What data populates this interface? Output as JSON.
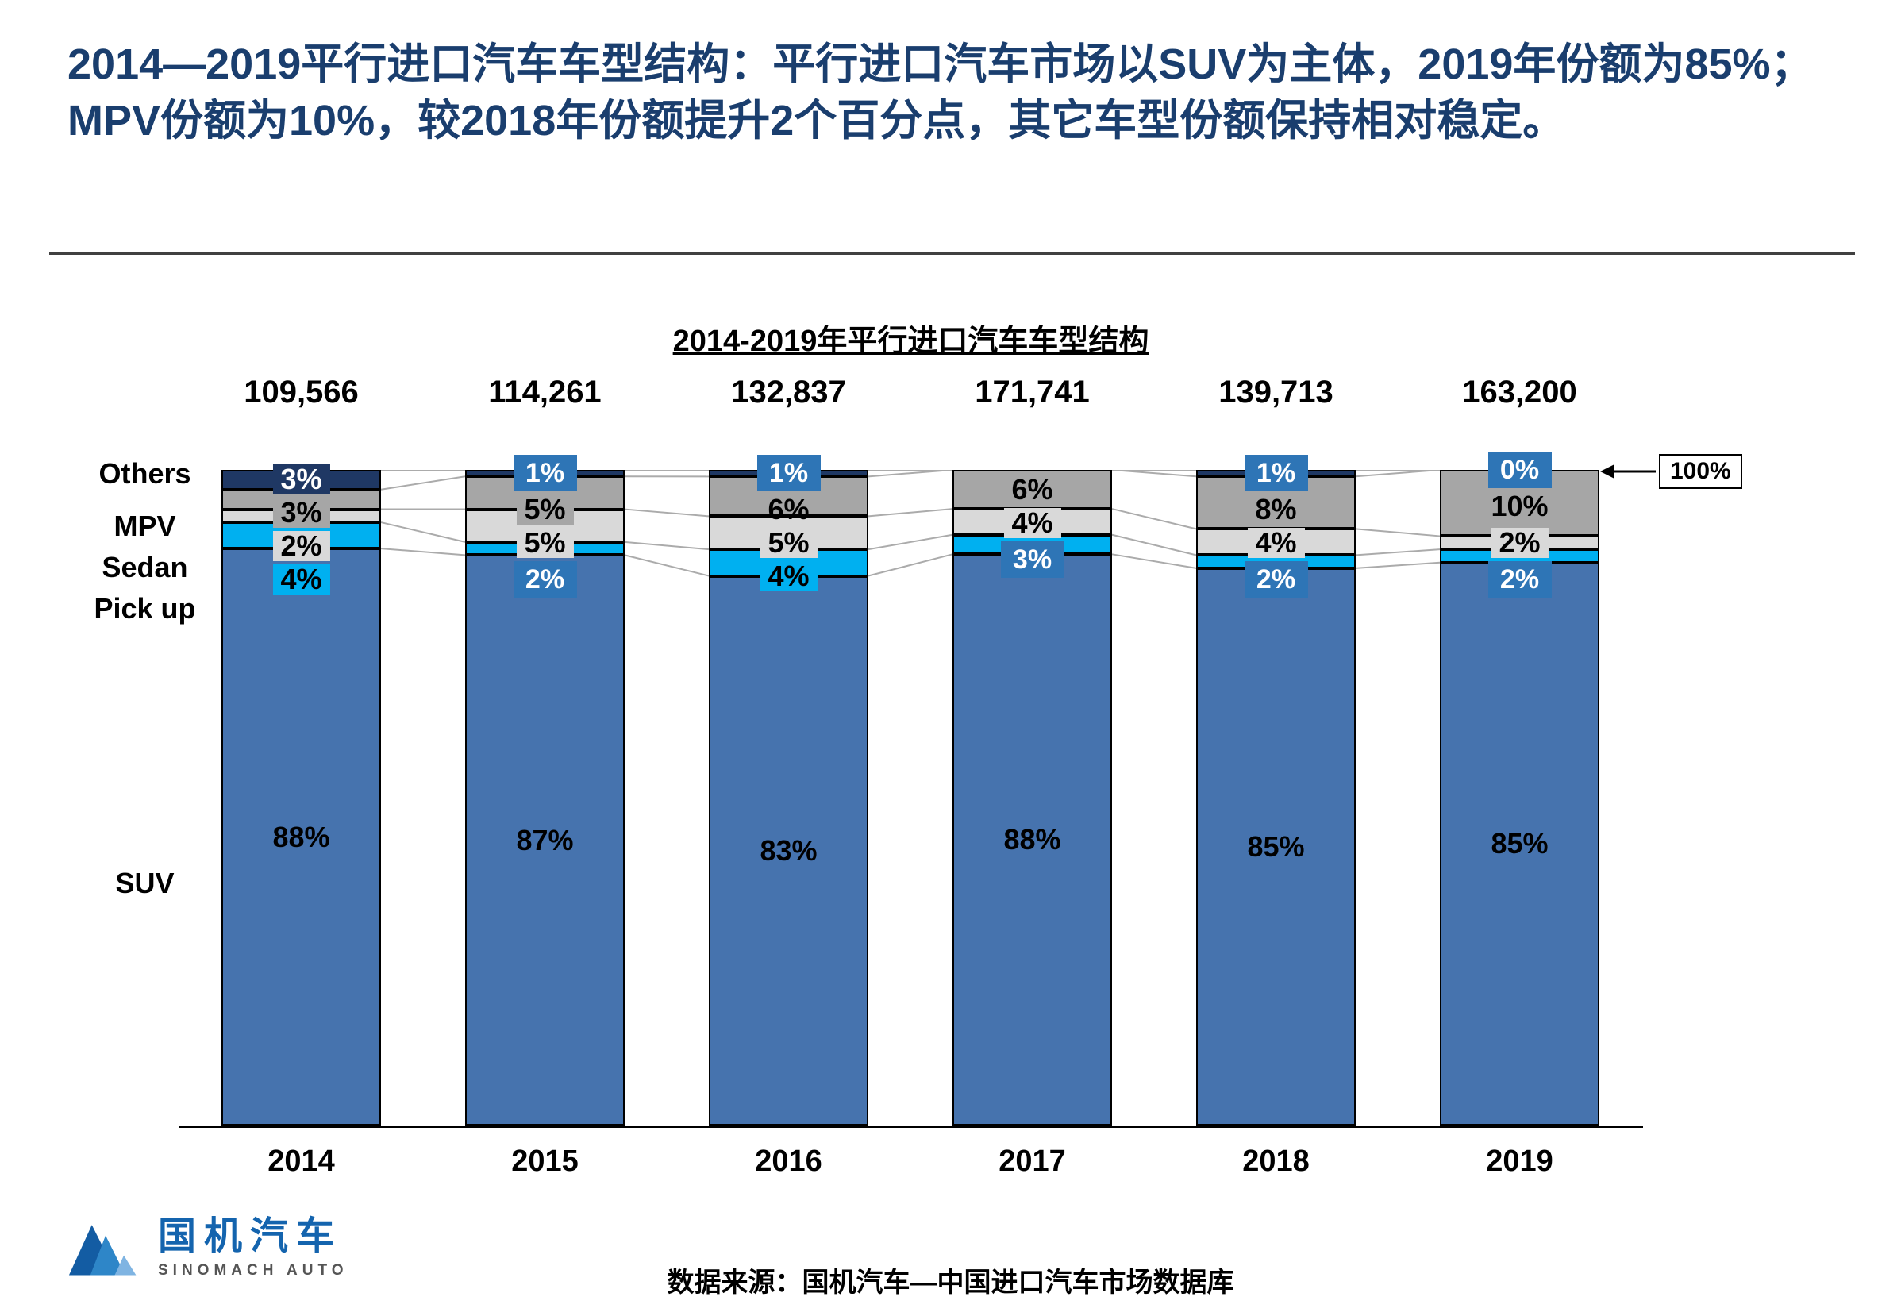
{
  "header": {
    "title": "2014—2019平行进口汽车车型结构：平行进口汽车市场以SUV为主体，2019年份额为85%；MPV份额为10%，较2018年份额提升2个百分点，其它车型份额保持相对稳定。"
  },
  "chart_data": {
    "type": "bar",
    "stacked": true,
    "title": "2014-2019年平行进口汽车车型结构",
    "categories": [
      "2014",
      "2015",
      "2016",
      "2017",
      "2018",
      "2019"
    ],
    "totals": [
      "109,566",
      "114,261",
      "132,837",
      "171,741",
      "139,713",
      "163,200"
    ],
    "left_axis_labels": [
      "Others",
      "MPV",
      "Sedan",
      "Pick up",
      "SUV"
    ],
    "xlabel": "",
    "ylabel": "",
    "ylim": [
      0,
      100
    ],
    "grid": false,
    "top_annotation": "100%",
    "series": [
      {
        "name": "SUV",
        "color": "#4673AE",
        "values": [
          88,
          87,
          83,
          88,
          85,
          85
        ],
        "labels": [
          "88%",
          "87%",
          "83%",
          "88%",
          "85%",
          "85%"
        ],
        "label_types": [
          "inside",
          "inside",
          "inside",
          "inside",
          "inside",
          "inside"
        ]
      },
      {
        "name": "Pick up",
        "color": "#00B0F0",
        "values": [
          4,
          2,
          4,
          3,
          2,
          2
        ],
        "labels": [
          "4%",
          "2%",
          "4%",
          "3%",
          "2%",
          "2%"
        ],
        "label_types": [
          "inside",
          "callout",
          "inside",
          "callout",
          "callout",
          "callout"
        ]
      },
      {
        "name": "Sedan",
        "color": "#D9D9D9",
        "values": [
          2,
          5,
          5,
          4,
          4,
          2
        ],
        "labels": [
          "2%",
          "5%",
          "5%",
          "4%",
          "4%",
          "2%"
        ],
        "label_types": [
          "inside",
          "inside",
          "inside",
          "inside",
          "inside",
          "inside"
        ]
      },
      {
        "name": "MPV",
        "color": "#A6A6A6",
        "values": [
          3,
          5,
          6,
          6,
          8,
          10
        ],
        "labels": [
          "3%",
          "5%",
          "6%",
          "6%",
          "8%",
          "10%"
        ],
        "label_types": [
          "inside",
          "inside",
          "inside",
          "inside",
          "inside",
          "inside"
        ]
      },
      {
        "name": "Others",
        "color": "#1F3864",
        "values": [
          3,
          1,
          1,
          0,
          1,
          0
        ],
        "labels": [
          "3%",
          "1%",
          "1%",
          "",
          "1%",
          "0%"
        ],
        "label_types": [
          "inside-white",
          "callout",
          "callout",
          "none",
          "callout",
          "callout"
        ]
      }
    ],
    "colors": {
      "callout": "#2E75B6",
      "connector": "#ABABAB",
      "segment_border": "#000000"
    }
  },
  "footer": {
    "source": "数据来源：国机汽车—中国进口汽车市场数据库",
    "logo_text": "国机汽车",
    "logo_subtext": "SINOMACH AUTO"
  }
}
